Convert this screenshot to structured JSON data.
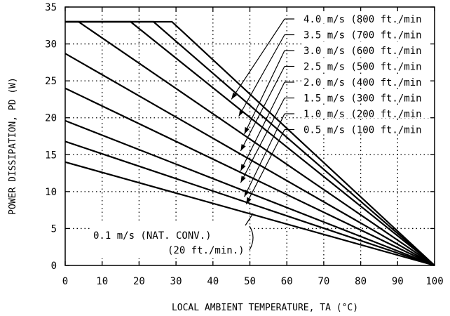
{
  "chart_data": {
    "type": "line",
    "xlabel": "LOCAL AMBIENT TEMPERATURE, TA (°C)",
    "ylabel": "POWER DISSIPATION, PD (W)",
    "xlim": [
      0,
      100
    ],
    "ylim": [
      0,
      35
    ],
    "x_ticks": [
      "0",
      "10",
      "20",
      "30",
      "40",
      "50",
      "60",
      "70",
      "80",
      "90",
      "100"
    ],
    "y_ticks": [
      "0",
      "5",
      "10",
      "15",
      "20",
      "25",
      "30",
      "35"
    ],
    "grid": "dotted",
    "series": [
      {
        "name": "0.1 m/s (NAT. CONV.) (20 ft./min.)",
        "points": [
          [
            0,
            14.0
          ],
          [
            100,
            0
          ]
        ]
      },
      {
        "name": "0.5 m/s (100 ft./min)",
        "points": [
          [
            0,
            16.8
          ],
          [
            100,
            0
          ]
        ]
      },
      {
        "name": "1.0 m/s (200 ft./min)",
        "points": [
          [
            0,
            19.6
          ],
          [
            100,
            0
          ]
        ]
      },
      {
        "name": "1.5 m/s (300 ft./min)",
        "points": [
          [
            0,
            24.0
          ],
          [
            100,
            0
          ]
        ]
      },
      {
        "name": "2.0 m/s (400 ft./min)",
        "points": [
          [
            0,
            28.7
          ],
          [
            100,
            0
          ]
        ]
      },
      {
        "name": "2.5 m/s (500 ft./min)",
        "points": [
          [
            0,
            33.0
          ],
          [
            3.6,
            33.0
          ],
          [
            100,
            0
          ]
        ]
      },
      {
        "name": "3.0 m/s (600 ft./min)",
        "points": [
          [
            0,
            33.0
          ],
          [
            17.7,
            33.0
          ],
          [
            100,
            0
          ]
        ]
      },
      {
        "name": "3.5 m/s (700 ft./min)",
        "points": [
          [
            0,
            33.0
          ],
          [
            23.9,
            33.0
          ],
          [
            100,
            0
          ]
        ]
      },
      {
        "name": "4.0 m/s (800 ft./min)",
        "points": [
          [
            0,
            33.0
          ],
          [
            28.9,
            33.0
          ],
          [
            100,
            0
          ]
        ]
      }
    ],
    "legend": [
      {
        "text": "4.0 m/s (800 ft./min",
        "target": [
          45,
          22.5
        ]
      },
      {
        "text": "3.5 m/s (700 ft./min",
        "target": [
          47,
          20.2
        ]
      },
      {
        "text": "3.0 m/s (600 ft./min",
        "target": [
          48.5,
          17.8
        ]
      },
      {
        "text": "2.5 m/s (500 ft./min",
        "target": [
          47.5,
          15.5
        ]
      },
      {
        "text": "2.0 m/s (400 ft./min",
        "target": [
          47.5,
          12.8
        ]
      },
      {
        "text": "1.5 m/s (300 ft./min",
        "target": [
          47.5,
          11.2
        ]
      },
      {
        "text": "1.0 m/s (200 ft./min",
        "target": [
          48.5,
          9.3
        ]
      },
      {
        "text": "0.5 m/s (100 ft./min",
        "target": [
          49,
          8.3
        ]
      }
    ],
    "annotation": {
      "line1": "0.1 m/s (NAT. CONV.)",
      "line2": "(20 ft./min.)"
    }
  }
}
